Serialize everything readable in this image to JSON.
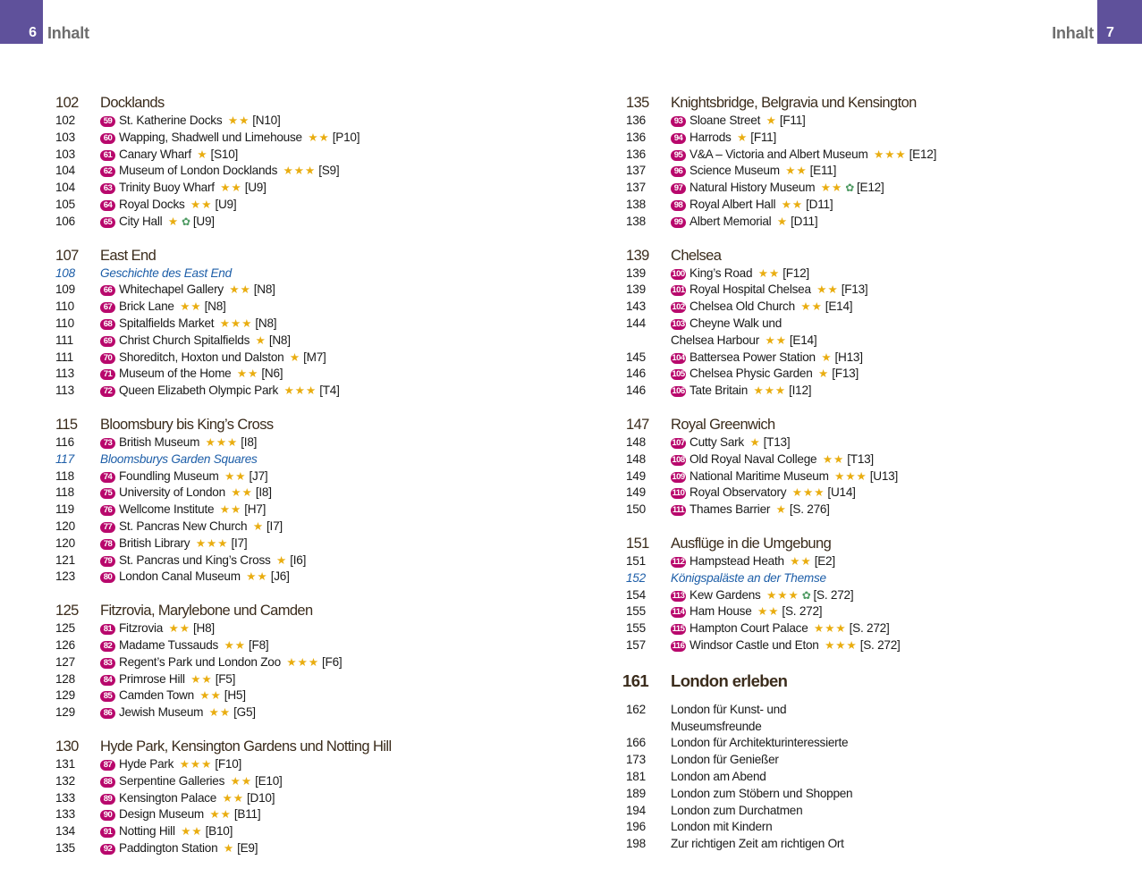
{
  "header": {
    "left_page": "6",
    "left_title": "Inhalt",
    "right_page": "7",
    "right_title": "Inhalt"
  },
  "colors": {
    "tab": "#5f519b",
    "badge": "#b8086c",
    "star": "#e9ad10",
    "italic_link": "#1d5ea8",
    "heading": "#3b2c1c",
    "green_icon": "#4e9a62"
  },
  "columns": [
    {
      "sections": [
        {
          "page": "102",
          "title": "Docklands",
          "items": [
            {
              "page": "102",
              "num": "59",
              "name": "St. Katherine Docks",
              "stars": 2,
              "ref": "[N10]"
            },
            {
              "page": "103",
              "num": "60",
              "name": "Wapping, Shadwell und Limehouse",
              "stars": 2,
              "ref": "[P10]"
            },
            {
              "page": "103",
              "num": "61",
              "name": "Canary Wharf",
              "stars": 1,
              "ref": "[S10]"
            },
            {
              "page": "104",
              "num": "62",
              "name": "Museum of London Docklands",
              "stars": 3,
              "ref": "[S9]"
            },
            {
              "page": "104",
              "num": "63",
              "name": "Trinity Buoy Wharf",
              "stars": 2,
              "ref": "[U9]"
            },
            {
              "page": "105",
              "num": "64",
              "name": "Royal Docks",
              "stars": 2,
              "ref": "[U9]"
            },
            {
              "page": "106",
              "num": "65",
              "name": "City Hall",
              "stars": 1,
              "green": true,
              "ref": "[U9]"
            }
          ]
        },
        {
          "page": "107",
          "title": "East End",
          "items": [
            {
              "page": "108",
              "name": "Geschichte des East End",
              "italic": true
            },
            {
              "page": "109",
              "num": "66",
              "name": "Whitechapel Gallery",
              "stars": 2,
              "ref": "[N8]"
            },
            {
              "page": "110",
              "num": "67",
              "name": "Brick Lane",
              "stars": 2,
              "ref": "[N8]"
            },
            {
              "page": "110",
              "num": "68",
              "name": "Spitalfields Market",
              "stars": 3,
              "ref": "[N8]"
            },
            {
              "page": "111",
              "num": "69",
              "name": "Christ Church Spitalfields",
              "stars": 1,
              "ref": "[N8]"
            },
            {
              "page": "111",
              "num": "70",
              "name": "Shoreditch, Hoxton und Dalston",
              "stars": 1,
              "ref": "[M7]"
            },
            {
              "page": "113",
              "num": "71",
              "name": "Museum of the Home",
              "stars": 2,
              "ref": "[N6]"
            },
            {
              "page": "113",
              "num": "72",
              "name": "Queen Elizabeth Olympic Park",
              "stars": 3,
              "ref": "[T4]"
            }
          ]
        },
        {
          "page": "115",
          "title": "Bloomsbury bis King’s Cross",
          "items": [
            {
              "page": "116",
              "num": "73",
              "name": "British Museum",
              "stars": 3,
              "ref": "[I8]"
            },
            {
              "page": "117",
              "name": "Bloomsburys Garden Squares",
              "italic": true
            },
            {
              "page": "118",
              "num": "74",
              "name": "Foundling Museum",
              "stars": 2,
              "ref": "[J7]"
            },
            {
              "page": "118",
              "num": "75",
              "name": "University of London",
              "stars": 2,
              "ref": "[I8]"
            },
            {
              "page": "119",
              "num": "76",
              "name": "Wellcome Institute",
              "stars": 2,
              "ref": "[H7]"
            },
            {
              "page": "120",
              "num": "77",
              "name": "St. Pancras New Church",
              "stars": 1,
              "ref": "[I7]"
            },
            {
              "page": "120",
              "num": "78",
              "name": "British Library",
              "stars": 3,
              "ref": "[I7]"
            },
            {
              "page": "121",
              "num": "79",
              "name": "St. Pancras und King’s Cross",
              "stars": 1,
              "ref": "[I6]"
            },
            {
              "page": "123",
              "num": "80",
              "name": "London Canal Museum",
              "stars": 2,
              "ref": "[J6]"
            }
          ]
        },
        {
          "page": "125",
          "title": "Fitzrovia, Marylebone und Camden",
          "items": [
            {
              "page": "125",
              "num": "81",
              "name": "Fitzrovia",
              "stars": 2,
              "ref": "[H8]"
            },
            {
              "page": "126",
              "num": "82",
              "name": "Madame Tussauds",
              "stars": 2,
              "ref": "[F8]"
            },
            {
              "page": "127",
              "num": "83",
              "name": "Regent’s Park und London Zoo",
              "stars": 3,
              "ref": "[F6]"
            },
            {
              "page": "128",
              "num": "84",
              "name": "Primrose Hill",
              "stars": 2,
              "ref": "[F5]"
            },
            {
              "page": "129",
              "num": "85",
              "name": "Camden Town",
              "stars": 2,
              "ref": "[H5]"
            },
            {
              "page": "129",
              "num": "86",
              "name": "Jewish Museum",
              "stars": 2,
              "ref": "[G5]"
            }
          ]
        },
        {
          "page": "130",
          "title": "Hyde Park, Kensington Gardens und Notting Hill",
          "items": [
            {
              "page": "131",
              "num": "87",
              "name": "Hyde Park",
              "stars": 3,
              "ref": "[F10]"
            },
            {
              "page": "132",
              "num": "88",
              "name": "Serpentine Galleries",
              "stars": 2,
              "ref": "[E10]"
            },
            {
              "page": "133",
              "num": "89",
              "name": "Kensington Palace",
              "stars": 2,
              "ref": "[D10]"
            },
            {
              "page": "133",
              "num": "90",
              "name": "Design Museum",
              "stars": 2,
              "ref": "[B11]"
            },
            {
              "page": "134",
              "num": "91",
              "name": "Notting Hill",
              "stars": 2,
              "ref": "[B10]"
            },
            {
              "page": "135",
              "num": "92",
              "name": "Paddington Station",
              "stars": 1,
              "ref": "[E9]"
            }
          ]
        }
      ]
    },
    {
      "sections": [
        {
          "page": "135",
          "title": "Knightsbridge, Belgravia und Kensington",
          "items": [
            {
              "page": "136",
              "num": "93",
              "name": "Sloane Street",
              "stars": 1,
              "ref": "[F11]"
            },
            {
              "page": "136",
              "num": "94",
              "name": "Harrods",
              "stars": 1,
              "ref": "[F11]"
            },
            {
              "page": "136",
              "num": "95",
              "name": "V&A – Victoria and Albert Museum",
              "stars": 3,
              "ref": "[E12]"
            },
            {
              "page": "137",
              "num": "96",
              "name": "Science Museum",
              "stars": 2,
              "ref": "[E11]"
            },
            {
              "page": "137",
              "num": "97",
              "name": "Natural History Museum",
              "stars": 2,
              "green": true,
              "ref": "[E12]"
            },
            {
              "page": "138",
              "num": "98",
              "name": "Royal Albert Hall",
              "stars": 2,
              "ref": "[D11]"
            },
            {
              "page": "138",
              "num": "99",
              "name": "Albert Memorial",
              "stars": 1,
              "ref": "[D11]"
            }
          ]
        },
        {
          "page": "139",
          "title": "Chelsea",
          "items": [
            {
              "page": "139",
              "num": "100",
              "name": "King’s Road",
              "stars": 2,
              "ref": "[F12]"
            },
            {
              "page": "139",
              "num": "101",
              "name": "Royal Hospital Chelsea",
              "stars": 2,
              "ref": "[F13]"
            },
            {
              "page": "143",
              "num": "102",
              "name": "Chelsea Old Church",
              "stars": 2,
              "ref": "[E14]"
            },
            {
              "page": "144",
              "num": "103",
              "name": "Cheyne Walk und"
            },
            {
              "page": "",
              "name": "Chelsea Harbour",
              "stars": 2,
              "ref": "[E14]",
              "cont": true
            },
            {
              "page": "145",
              "num": "104",
              "name": "Battersea Power Station",
              "stars": 1,
              "ref": "[H13]"
            },
            {
              "page": "146",
              "num": "105",
              "name": "Chelsea Physic Garden",
              "stars": 1,
              "ref": "[F13]"
            },
            {
              "page": "146",
              "num": "106",
              "name": "Tate Britain",
              "stars": 3,
              "ref": "[I12]"
            }
          ]
        },
        {
          "page": "147",
          "title": "Royal Greenwich",
          "items": [
            {
              "page": "148",
              "num": "107",
              "name": "Cutty Sark",
              "stars": 1,
              "ref": "[T13]"
            },
            {
              "page": "148",
              "num": "108",
              "name": "Old Royal Naval College",
              "stars": 2,
              "ref": "[T13]"
            },
            {
              "page": "149",
              "num": "109",
              "name": "National Maritime Museum",
              "stars": 3,
              "ref": "[U13]"
            },
            {
              "page": "149",
              "num": "110",
              "name": "Royal Observatory",
              "stars": 3,
              "ref": "[U14]"
            },
            {
              "page": "150",
              "num": "111",
              "name": "Thames Barrier",
              "stars": 1,
              "ref": "[S. 276]"
            }
          ]
        },
        {
          "page": "151",
          "title": "Ausflüge in die Umgebung",
          "items": [
            {
              "page": "151",
              "num": "112",
              "name": "Hampstead Heath",
              "stars": 2,
              "ref": "[E2]"
            },
            {
              "page": "152",
              "name": "Königspaläste an der Themse",
              "italic": true
            },
            {
              "page": "154",
              "num": "113",
              "name": "Kew Gardens",
              "stars": 3,
              "green": true,
              "ref": "[S. 272]"
            },
            {
              "page": "155",
              "num": "114",
              "name": "Ham House",
              "stars": 2,
              "ref": "[S. 272]"
            },
            {
              "page": "155",
              "num": "115",
              "name": "Hampton Court Palace",
              "stars": 3,
              "ref": "[S. 272]"
            },
            {
              "page": "157",
              "num": "116",
              "name": "Windsor Castle und Eton",
              "stars": 3,
              "ref": "[S. 272]"
            }
          ]
        },
        {
          "page": "161",
          "title": "London erleben",
          "big": true,
          "items": [
            {
              "page": "162",
              "name": "London für Kunst- und"
            },
            {
              "page": "",
              "name": "Museumsfreunde",
              "cont": true
            },
            {
              "page": "166",
              "name": "London für Architekturinteressierte"
            },
            {
              "page": "173",
              "name": "London für Genießer"
            },
            {
              "page": "181",
              "name": "London am Abend"
            },
            {
              "page": "189",
              "name": "London zum Stöbern und Shoppen"
            },
            {
              "page": "194",
              "name": "London zum Durchatmen"
            },
            {
              "page": "196",
              "name": "London mit Kindern"
            },
            {
              "page": "198",
              "name": "Zur richtigen Zeit am richtigen Ort"
            }
          ]
        }
      ]
    }
  ]
}
